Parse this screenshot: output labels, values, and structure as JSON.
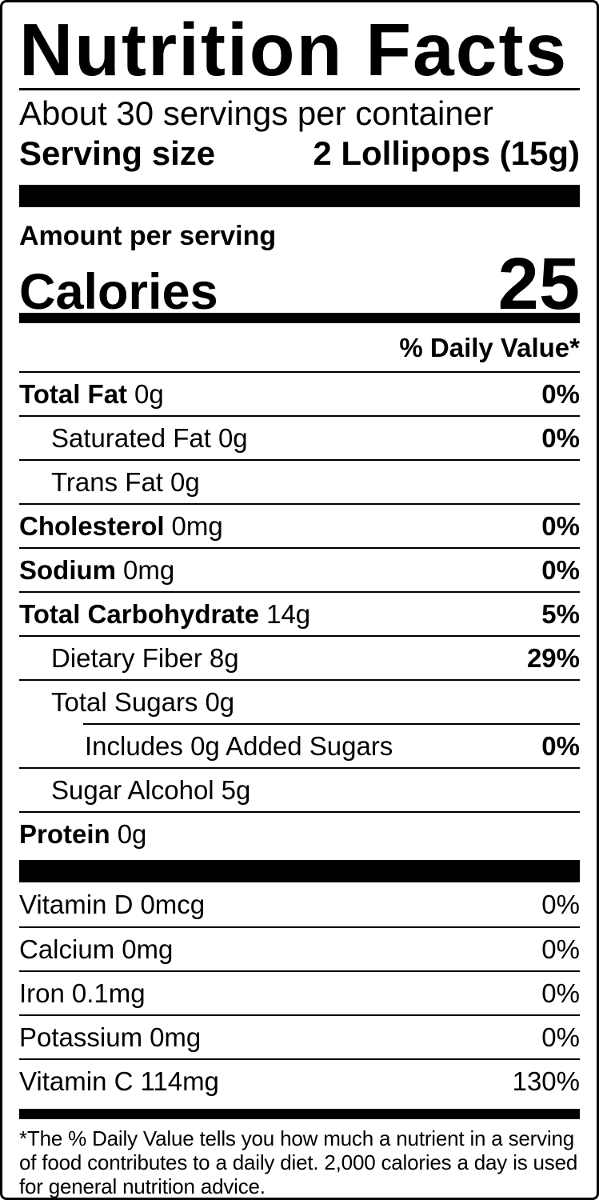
{
  "label": {
    "title": "Nutrition Facts",
    "servings_per_container": "About 30 servings per container",
    "serving_size_label": "Serving size",
    "serving_size_value": "2 Lollipops (15g)",
    "amount_per_serving": "Amount per serving",
    "calories_label": "Calories",
    "calories_value": "25",
    "daily_value_header": "% Daily Value*",
    "nutrients": [
      {
        "name": "Total Fat",
        "amount": "0g",
        "dv": "0%"
      },
      {
        "name": "Saturated Fat",
        "amount": "0g",
        "dv": "0%"
      },
      {
        "name": "Trans Fat",
        "amount": "0g",
        "dv": ""
      },
      {
        "name": "Cholesterol",
        "amount": "0mg",
        "dv": "0%"
      },
      {
        "name": "Sodium",
        "amount": "0mg",
        "dv": "0%"
      },
      {
        "name": "Total Carbohydrate",
        "amount": "14g",
        "dv": "5%"
      },
      {
        "name": "Dietary Fiber",
        "amount": "8g",
        "dv": "29%"
      },
      {
        "name": "Total Sugars",
        "amount": "0g",
        "dv": ""
      },
      {
        "name": "Includes 0g Added Sugars",
        "amount": "",
        "dv": "0%"
      },
      {
        "name": "Sugar Alcohol",
        "amount": "5g",
        "dv": ""
      },
      {
        "name": "Protein",
        "amount": "0g",
        "dv": ""
      }
    ],
    "micronutrients": [
      {
        "name": "Vitamin D",
        "amount": "0mcg",
        "dv": "0%"
      },
      {
        "name": "Calcium",
        "amount": "0mg",
        "dv": "0%"
      },
      {
        "name": "Iron",
        "amount": "0.1mg",
        "dv": "0%"
      },
      {
        "name": "Potassium",
        "amount": "0mg",
        "dv": "0%"
      },
      {
        "name": "Vitamin C",
        "amount": "114mg",
        "dv": "130%"
      }
    ],
    "footnote": "*The % Daily Value tells you how much a nutrient in a serving of food contributes to a daily diet. 2,000 calories a day is used for general nutrition advice.",
    "colors": {
      "text": "#000000",
      "background": "#ffffff",
      "bar": "#000000"
    }
  }
}
